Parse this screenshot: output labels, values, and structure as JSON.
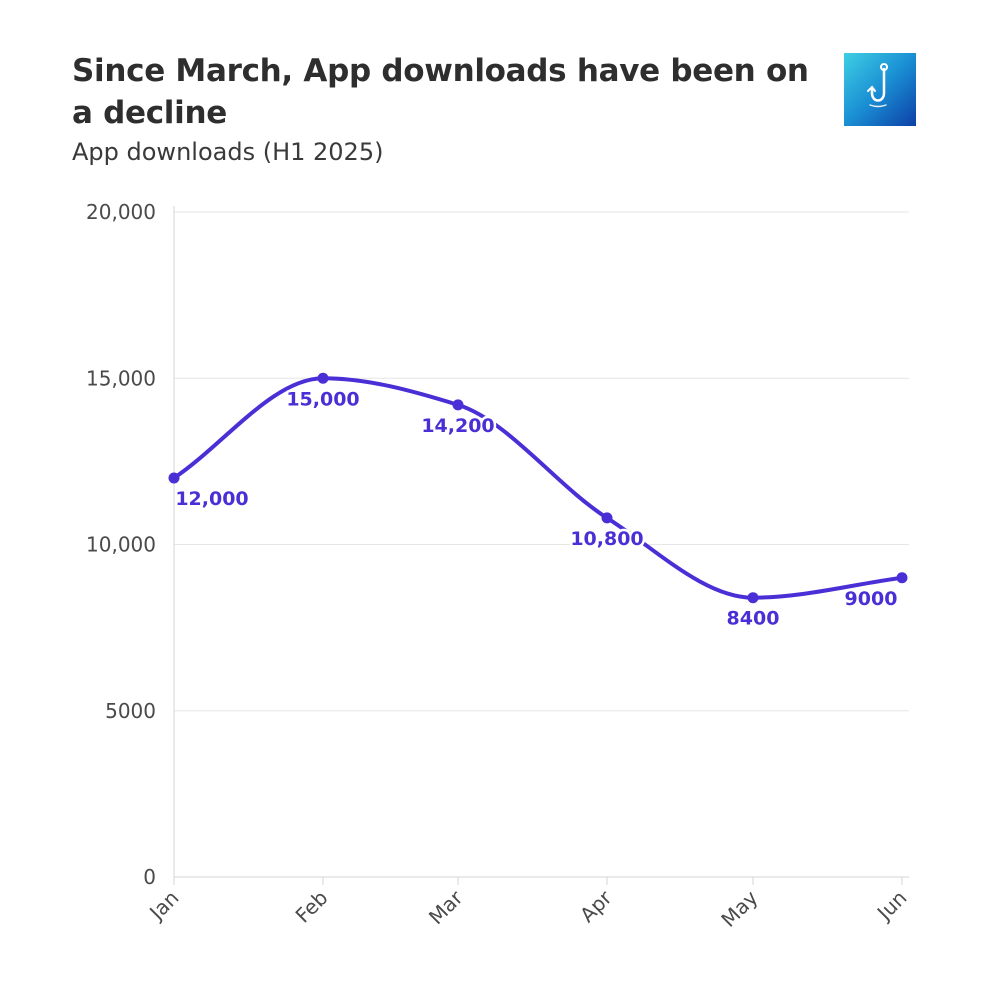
{
  "header": {
    "title": "Since March, App downloads have been on a decline",
    "subtitle": "App downloads (H1 2025)",
    "logo_icon": "hook-icon"
  },
  "colors": {
    "series": "#4a2fd6",
    "grid": "#e6e6e6",
    "axis": "#d4d4d4"
  },
  "chart_data": {
    "type": "line",
    "title": "Since March, App downloads have been on a decline",
    "subtitle": "App downloads (H1 2025)",
    "xlabel": "",
    "ylabel": "",
    "categories": [
      "Jan",
      "Feb",
      "Mar",
      "Apr",
      "May",
      "Jun"
    ],
    "series": [
      {
        "name": "App downloads",
        "values": [
          12000,
          15000,
          14200,
          10800,
          8400,
          9000
        ],
        "labels": [
          "12,000",
          "15,000",
          "14,200",
          "10,800",
          "8400",
          "9000"
        ]
      }
    ],
    "ylim": [
      0,
      20000
    ],
    "yticks": [
      0,
      5000,
      10000,
      15000,
      20000
    ],
    "ytick_labels": [
      "0",
      "5000",
      "10,000",
      "15,000",
      "20,000"
    ],
    "grid": true,
    "smooth": true
  }
}
